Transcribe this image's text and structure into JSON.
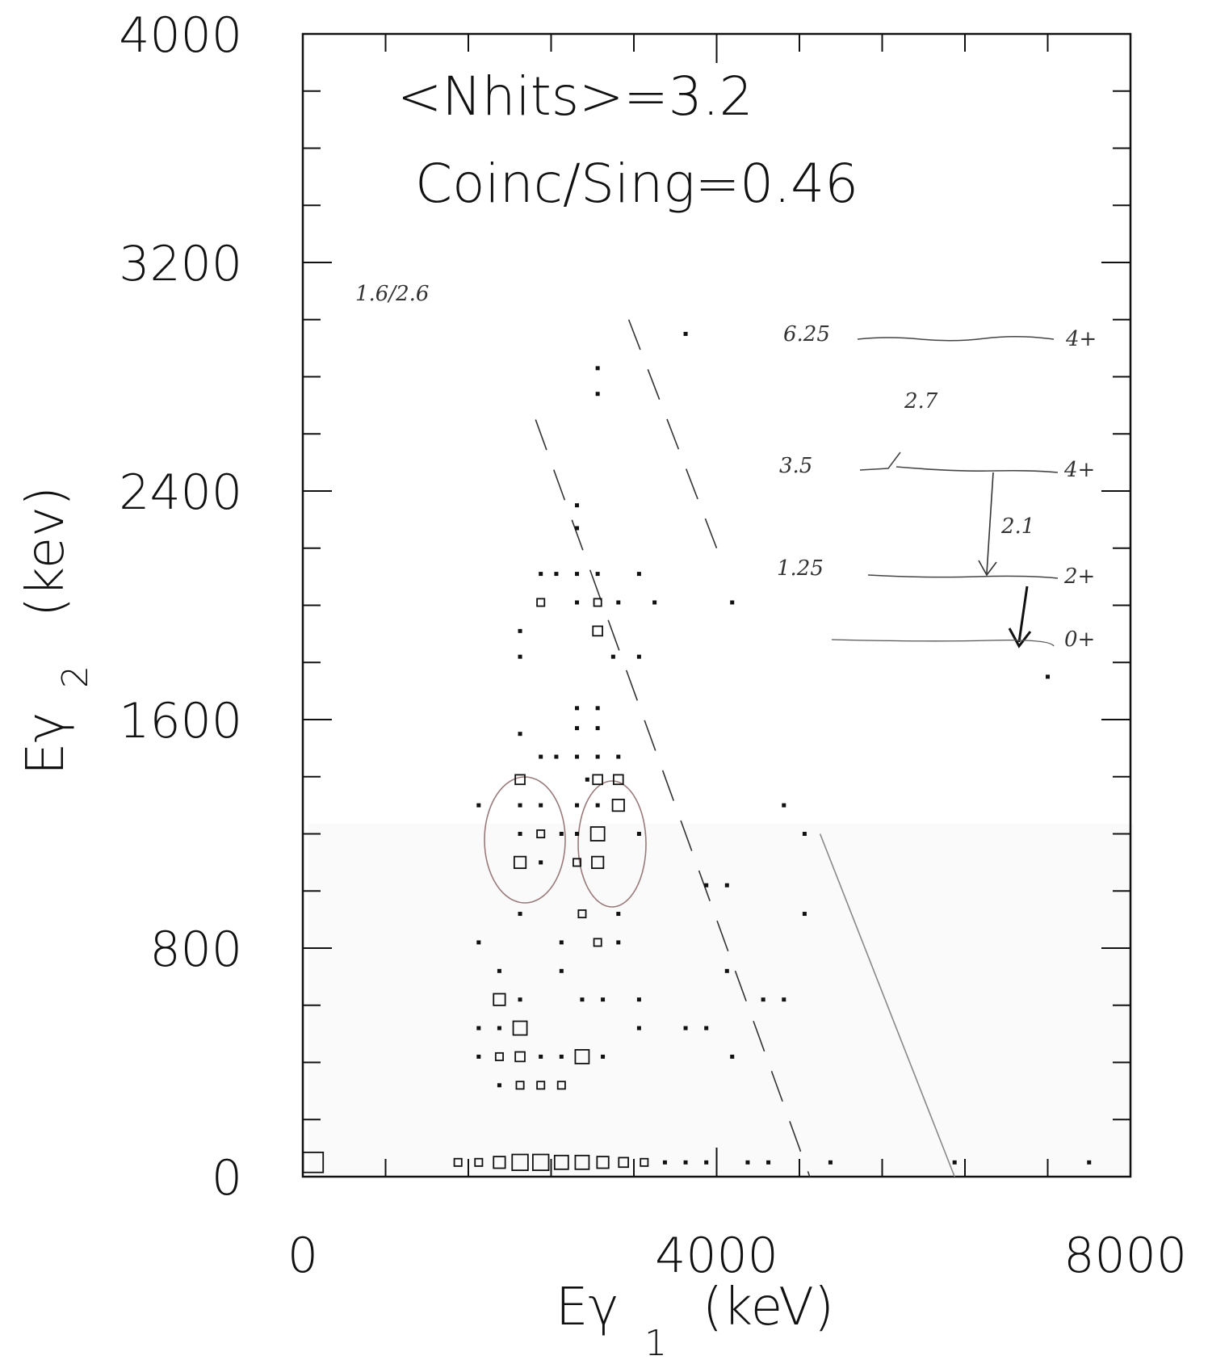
{
  "chart_data": {
    "type": "scatter",
    "title": "",
    "xlabel": "Eγ",
    "xlabel_subscript": "1",
    "xlabel_unit": "(keV)",
    "ylabel": "Eγ",
    "ylabel_subscript": "2",
    "ylabel_unit": "(kev)",
    "xlim": [
      0,
      8000
    ],
    "ylim": [
      0,
      4000
    ],
    "x_ticks": [
      "0",
      "4000",
      "8000"
    ],
    "y_ticks": [
      "0",
      "800",
      "1600",
      "2400",
      "3200",
      "4000"
    ],
    "x_tick_values": [
      0,
      4000,
      8000
    ],
    "y_tick_values": [
      0,
      800,
      1600,
      2400,
      3200,
      4000
    ],
    "grid": false,
    "annotations": [
      "<Nhits>=3.2",
      "Coinc/Sing=0.46"
    ],
    "handwritten": {
      "note": "1.6/2.6",
      "levels": [
        {
          "energy": "6.25",
          "spin": "4+"
        },
        {
          "energy": "3.5",
          "spin": "4+"
        },
        {
          "energy": "1.25",
          "spin": "2+"
        },
        {
          "energy": "",
          "spin": "0+"
        }
      ],
      "transitions": [
        "2.7",
        "2.1"
      ]
    },
    "points": [
      {
        "x": 3700,
        "y": 2950,
        "w": 1
      },
      {
        "x": 2850,
        "y": 2830,
        "w": 1
      },
      {
        "x": 2850,
        "y": 2740,
        "w": 1
      },
      {
        "x": 2650,
        "y": 2350,
        "w": 1
      },
      {
        "x": 2650,
        "y": 2270,
        "w": 1
      },
      {
        "x": 2300,
        "y": 2110,
        "w": 1
      },
      {
        "x": 2450,
        "y": 2110,
        "w": 1
      },
      {
        "x": 2650,
        "y": 2110,
        "w": 1
      },
      {
        "x": 2850,
        "y": 2110,
        "w": 1
      },
      {
        "x": 3250,
        "y": 2110,
        "w": 1
      },
      {
        "x": 2300,
        "y": 2010,
        "w": 2
      },
      {
        "x": 2650,
        "y": 2010,
        "w": 1
      },
      {
        "x": 2850,
        "y": 2010,
        "w": 2
      },
      {
        "x": 3050,
        "y": 2010,
        "w": 1
      },
      {
        "x": 3400,
        "y": 2010,
        "w": 1
      },
      {
        "x": 4150,
        "y": 2010,
        "w": 1
      },
      {
        "x": 2100,
        "y": 1910,
        "w": 1
      },
      {
        "x": 2850,
        "y": 1910,
        "w": 3
      },
      {
        "x": 2100,
        "y": 1820,
        "w": 1
      },
      {
        "x": 3000,
        "y": 1820,
        "w": 1
      },
      {
        "x": 3250,
        "y": 1820,
        "w": 1
      },
      {
        "x": 2650,
        "y": 1640,
        "w": 1
      },
      {
        "x": 2850,
        "y": 1640,
        "w": 1
      },
      {
        "x": 2650,
        "y": 1570,
        "w": 1
      },
      {
        "x": 2850,
        "y": 1570,
        "w": 1
      },
      {
        "x": 2100,
        "y": 1550,
        "w": 1
      },
      {
        "x": 2300,
        "y": 1470,
        "w": 1
      },
      {
        "x": 2450,
        "y": 1470,
        "w": 1
      },
      {
        "x": 2650,
        "y": 1470,
        "w": 1
      },
      {
        "x": 2850,
        "y": 1470,
        "w": 1
      },
      {
        "x": 3050,
        "y": 1470,
        "w": 1
      },
      {
        "x": 2100,
        "y": 1390,
        "w": 3
      },
      {
        "x": 2750,
        "y": 1390,
        "w": 1
      },
      {
        "x": 2850,
        "y": 1390,
        "w": 3
      },
      {
        "x": 3050,
        "y": 1390,
        "w": 3
      },
      {
        "x": 1700,
        "y": 1300,
        "w": 1
      },
      {
        "x": 2100,
        "y": 1300,
        "w": 1
      },
      {
        "x": 2300,
        "y": 1300,
        "w": 1
      },
      {
        "x": 2650,
        "y": 1300,
        "w": 1
      },
      {
        "x": 2850,
        "y": 1300,
        "w": 1
      },
      {
        "x": 3050,
        "y": 1300,
        "w": 4
      },
      {
        "x": 4650,
        "y": 1300,
        "w": 1
      },
      {
        "x": 2100,
        "y": 1200,
        "w": 1
      },
      {
        "x": 2300,
        "y": 1200,
        "w": 2
      },
      {
        "x": 2500,
        "y": 1200,
        "w": 1
      },
      {
        "x": 2650,
        "y": 1200,
        "w": 1
      },
      {
        "x": 2850,
        "y": 1200,
        "w": 5
      },
      {
        "x": 3250,
        "y": 1200,
        "w": 1
      },
      {
        "x": 4850,
        "y": 1200,
        "w": 1
      },
      {
        "x": 2100,
        "y": 1100,
        "w": 4
      },
      {
        "x": 2300,
        "y": 1100,
        "w": 1
      },
      {
        "x": 2650,
        "y": 1100,
        "w": 2
      },
      {
        "x": 2850,
        "y": 1100,
        "w": 4
      },
      {
        "x": 3900,
        "y": 1020,
        "w": 1
      },
      {
        "x": 4100,
        "y": 1020,
        "w": 1
      },
      {
        "x": 2100,
        "y": 920,
        "w": 1
      },
      {
        "x": 2700,
        "y": 920,
        "w": 2
      },
      {
        "x": 3050,
        "y": 920,
        "w": 1
      },
      {
        "x": 4850,
        "y": 920,
        "w": 1
      },
      {
        "x": 1700,
        "y": 820,
        "w": 1
      },
      {
        "x": 2500,
        "y": 820,
        "w": 1
      },
      {
        "x": 2850,
        "y": 820,
        "w": 2
      },
      {
        "x": 3050,
        "y": 820,
        "w": 1
      },
      {
        "x": 1900,
        "y": 720,
        "w": 1
      },
      {
        "x": 2500,
        "y": 720,
        "w": 1
      },
      {
        "x": 4100,
        "y": 720,
        "w": 1
      },
      {
        "x": 1900,
        "y": 620,
        "w": 4
      },
      {
        "x": 2100,
        "y": 620,
        "w": 1
      },
      {
        "x": 2700,
        "y": 620,
        "w": 1
      },
      {
        "x": 2900,
        "y": 620,
        "w": 1
      },
      {
        "x": 3250,
        "y": 620,
        "w": 1
      },
      {
        "x": 4450,
        "y": 620,
        "w": 1
      },
      {
        "x": 4650,
        "y": 620,
        "w": 1
      },
      {
        "x": 1700,
        "y": 520,
        "w": 1
      },
      {
        "x": 1900,
        "y": 520,
        "w": 1
      },
      {
        "x": 2100,
        "y": 520,
        "w": 5
      },
      {
        "x": 3250,
        "y": 520,
        "w": 1
      },
      {
        "x": 3700,
        "y": 520,
        "w": 1
      },
      {
        "x": 3900,
        "y": 520,
        "w": 1
      },
      {
        "x": 1700,
        "y": 420,
        "w": 1
      },
      {
        "x": 1900,
        "y": 420,
        "w": 2
      },
      {
        "x": 2100,
        "y": 420,
        "w": 3
      },
      {
        "x": 2300,
        "y": 420,
        "w": 1
      },
      {
        "x": 2500,
        "y": 420,
        "w": 1
      },
      {
        "x": 2700,
        "y": 420,
        "w": 5
      },
      {
        "x": 2900,
        "y": 420,
        "w": 1
      },
      {
        "x": 4150,
        "y": 420,
        "w": 1
      },
      {
        "x": 1900,
        "y": 320,
        "w": 1
      },
      {
        "x": 2100,
        "y": 320,
        "w": 2
      },
      {
        "x": 2300,
        "y": 320,
        "w": 2
      },
      {
        "x": 2500,
        "y": 320,
        "w": 2
      },
      {
        "x": 1500,
        "y": 50,
        "w": 2
      },
      {
        "x": 1700,
        "y": 50,
        "w": 2
      },
      {
        "x": 1900,
        "y": 50,
        "w": 4
      },
      {
        "x": 2100,
        "y": 50,
        "w": 6
      },
      {
        "x": 2300,
        "y": 50,
        "w": 6
      },
      {
        "x": 2500,
        "y": 50,
        "w": 5
      },
      {
        "x": 2700,
        "y": 50,
        "w": 5
      },
      {
        "x": 2900,
        "y": 50,
        "w": 4
      },
      {
        "x": 3100,
        "y": 50,
        "w": 3
      },
      {
        "x": 3300,
        "y": 50,
        "w": 2
      },
      {
        "x": 3500,
        "y": 50,
        "w": 1
      },
      {
        "x": 3700,
        "y": 50,
        "w": 1
      },
      {
        "x": 3900,
        "y": 50,
        "w": 1
      },
      {
        "x": 4300,
        "y": 50,
        "w": 1
      },
      {
        "x": 4500,
        "y": 50,
        "w": 1
      },
      {
        "x": 5100,
        "y": 50,
        "w": 1
      },
      {
        "x": 6300,
        "y": 50,
        "w": 1
      },
      {
        "x": 7600,
        "y": 50,
        "w": 1
      },
      {
        "x": 7200,
        "y": 1750,
        "w": 1
      },
      {
        "x": 100,
        "y": 50,
        "w": 8
      }
    ],
    "lines": [
      {
        "x1": 3150,
        "y1": 3000,
        "x2": 4000,
        "y2": 2200
      },
      {
        "x1": 2250,
        "y1": 2650,
        "x2": 4900,
        "y2": 0
      },
      {
        "x1": 5000,
        "y1": 1200,
        "x2": 6300,
        "y2": 0
      }
    ]
  }
}
